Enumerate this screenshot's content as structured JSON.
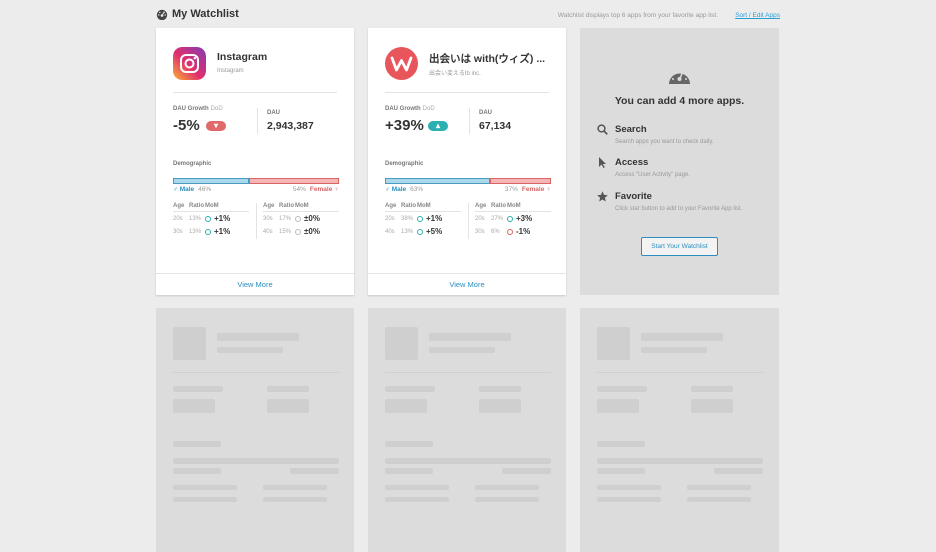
{
  "header": {
    "title": "My Watchlist",
    "subtitle": "Watchlist displays top 6 apps from your favorite app list.",
    "sort_link": "Sort / Edit Apps"
  },
  "labels": {
    "dau_growth": "DAU Growth",
    "dod": "DoD",
    "dau": "DAU",
    "demographic": "Demographic",
    "male": "Male",
    "female": "Female",
    "age": "Age",
    "ratio": "Ratio",
    "mom": "MoM",
    "view_more": "View More"
  },
  "apps": [
    {
      "name": "Instagram",
      "company": "Instagram",
      "growth": "-5%",
      "growth_direction": "down",
      "dau": "2,943,387",
      "male_pct": "46%",
      "female_pct": "54%",
      "male_share": 0.46,
      "male_rows": [
        {
          "age": "20s",
          "ratio": "13%",
          "mom": "+1%",
          "trend": "up"
        },
        {
          "age": "30s",
          "ratio": "13%",
          "mom": "+1%",
          "trend": "up"
        }
      ],
      "female_rows": [
        {
          "age": "30s",
          "ratio": "17%",
          "mom": "±0%",
          "trend": "flat"
        },
        {
          "age": "40s",
          "ratio": "15%",
          "mom": "±0%",
          "trend": "flat"
        }
      ]
    },
    {
      "name": "出会いは with(ウィズ) ...",
      "company": "出会い変えるIb inc.",
      "growth": "+39%",
      "growth_direction": "up",
      "dau": "67,134",
      "male_pct": "63%",
      "female_pct": "37%",
      "male_share": 0.63,
      "male_rows": [
        {
          "age": "20s",
          "ratio": "38%",
          "mom": "+1%",
          "trend": "up"
        },
        {
          "age": "40s",
          "ratio": "13%",
          "mom": "+5%",
          "trend": "up"
        }
      ],
      "female_rows": [
        {
          "age": "20s",
          "ratio": "27%",
          "mom": "+3%",
          "trend": "up"
        },
        {
          "age": "30s",
          "ratio": "6%",
          "mom": "-1%",
          "trend": "down"
        }
      ]
    }
  ],
  "add_panel": {
    "title": "You can add 4 more apps.",
    "features": [
      {
        "icon": "search-icon",
        "title": "Search",
        "desc": "Search apps you want to check daily."
      },
      {
        "icon": "cursor-icon",
        "title": "Access",
        "desc": "Access \"User Activity\" page."
      },
      {
        "icon": "star-icon",
        "title": "Favorite",
        "desc": "Click star button to add to your Favorite App list."
      }
    ],
    "button": "Start Your Watchlist"
  },
  "colors": {
    "accent": "#2a8fbf",
    "teal": "#2ab0b0",
    "red": "#d96464",
    "male_bar": "#a8d8ea",
    "female_bar": "#f3b5b5"
  }
}
